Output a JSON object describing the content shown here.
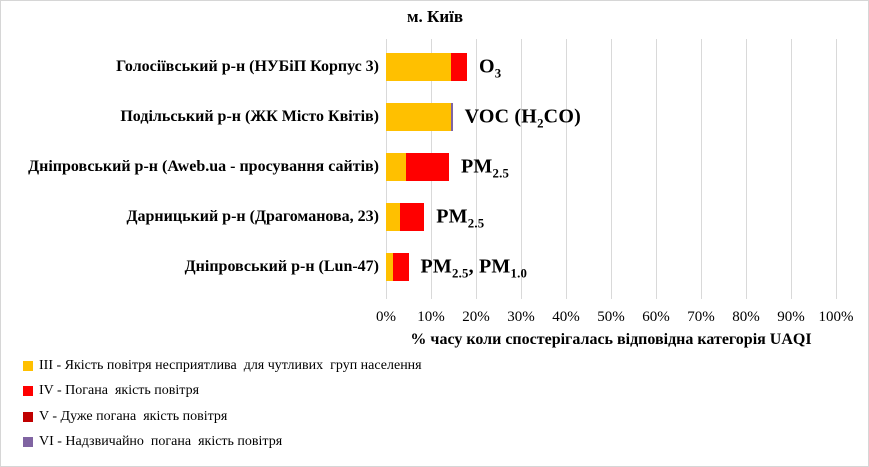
{
  "chart_data": {
    "type": "bar",
    "orientation": "horizontal",
    "stacked": true,
    "title": "м. Київ",
    "xlabel": "% часу коли спостерігалась відповідна категорія UAQI",
    "xlim": [
      0,
      100
    ],
    "xticks": [
      "0%",
      "10%",
      "20%",
      "30%",
      "40%",
      "50%",
      "60%",
      "70%",
      "80%",
      "90%",
      "100%"
    ],
    "grid": true,
    "gridline_color": "#d9d9d9",
    "background": "#ffffff",
    "legend_position": "bottom-left",
    "categories": [
      "Голосіївський р-н (НУБіП Корпус 3)",
      "Подільський р-н (ЖК Місто Квітів)",
      "Дніпровський р-н (Aweb.ua - просування сайтів)",
      "Дарницький р-н (Драгоманова, 23)",
      "Дніпровський р-н (Lun-47)"
    ],
    "series": [
      {
        "name": "III - Якість повітря несприятлива  для чутливих  груп населення",
        "color": "#FFC000",
        "values": [
          14.5,
          14.5,
          4.5,
          3,
          1.5
        ]
      },
      {
        "name": "IV - Погана  якість повітря",
        "color": "#FF0000",
        "values": [
          3.5,
          0,
          9.5,
          5.5,
          3.5
        ]
      },
      {
        "name": "V - Дуже погана  якість повітря",
        "color": "#C00000",
        "values": [
          0,
          0,
          0,
          0,
          0
        ]
      },
      {
        "name": "VI - Надзвичайно  погана  якість повітря",
        "color": "#8064A2",
        "values": [
          0,
          0.3,
          0,
          0,
          0
        ]
      }
    ],
    "bar_labels": [
      "O{3}",
      "VOC (H{2}CO)",
      "PM{2.5}",
      "PM{2.5}",
      "PM{2.5}, PM{1.0}"
    ]
  }
}
